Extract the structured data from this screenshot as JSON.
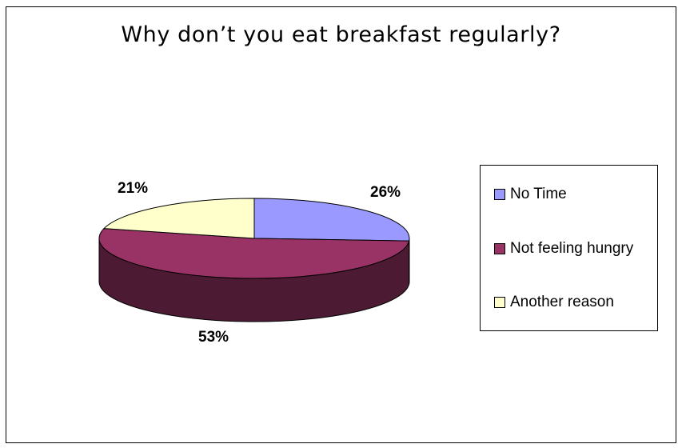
{
  "chart_data": {
    "type": "pie",
    "title": "Why don’t you eat breakfast regularly?",
    "categories": [
      "No Time",
      "Not feeling hungry",
      "Another reason"
    ],
    "values": [
      26,
      53,
      21
    ],
    "labels": [
      "26%",
      "53%",
      "21%"
    ],
    "colors": [
      "#9999ff",
      "#993366",
      "#ffffcc"
    ],
    "side_colors": [
      "#5c5c99",
      "#4d1a33",
      "#99997a"
    ],
    "legend_position": "right",
    "style": "3d"
  }
}
